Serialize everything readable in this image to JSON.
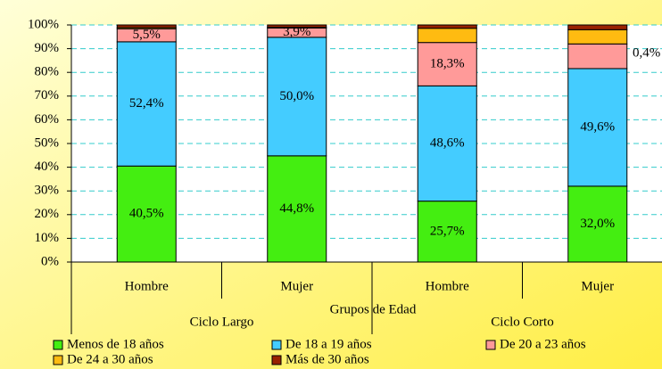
{
  "chart_data": {
    "type": "bar",
    "stacked": true,
    "xlabel": "Grupos de Edad",
    "categories": [
      "Hombre",
      "Mujer",
      "Hombre",
      "Mujer"
    ],
    "groups": [
      "Ciclo Largo",
      "Ciclo Corto"
    ],
    "ylim": [
      0,
      100
    ],
    "yticks": [
      {
        "value": 0,
        "label": "0%"
      },
      {
        "value": 10,
        "label": "10%"
      },
      {
        "value": 20,
        "label": "20%"
      },
      {
        "value": 30,
        "label": "30%"
      },
      {
        "value": 40,
        "label": "40%"
      },
      {
        "value": 50,
        "label": "50%"
      },
      {
        "value": 60,
        "label": "60%"
      },
      {
        "value": 70,
        "label": "70%"
      },
      {
        "value": 80,
        "label": "80%"
      },
      {
        "value": 90,
        "label": "90%"
      },
      {
        "value": 100,
        "label": "100%"
      }
    ],
    "grid": true,
    "series": [
      {
        "name": "Menos de 18 años",
        "color": "#44ee11",
        "values": [
          40.5,
          44.8,
          25.7,
          32.0
        ],
        "value_labels": [
          "40,5%",
          "44,8%",
          "25,7%",
          "32,0%"
        ]
      },
      {
        "name": "De 18 a 19 años",
        "color": "#44ccff",
        "values": [
          52.4,
          50.0,
          48.6,
          49.6
        ],
        "value_labels": [
          "52,4%",
          "50,0%",
          "48,6%",
          "49,6%"
        ]
      },
      {
        "name": "De 20 a 23 años",
        "color": "#ff9a99",
        "values": [
          5.5,
          3.9,
          18.3,
          10.4
        ],
        "value_labels": [
          "5,5%",
          "3,9%",
          "18,3%",
          null
        ]
      },
      {
        "name": "De 24 a 30 años",
        "color": "#ffbb11",
        "values": [
          0.5,
          0.3,
          6.0,
          6.0
        ],
        "value_labels": [
          null,
          null,
          null,
          null
        ]
      },
      {
        "name": "Más de 30 años",
        "color": "#992200",
        "values": [
          1.1,
          1.0,
          1.4,
          2.0
        ],
        "value_labels": [
          null,
          null,
          null,
          null
        ]
      }
    ],
    "annotations": [
      "0,4%"
    ],
    "legend": "bottom"
  }
}
